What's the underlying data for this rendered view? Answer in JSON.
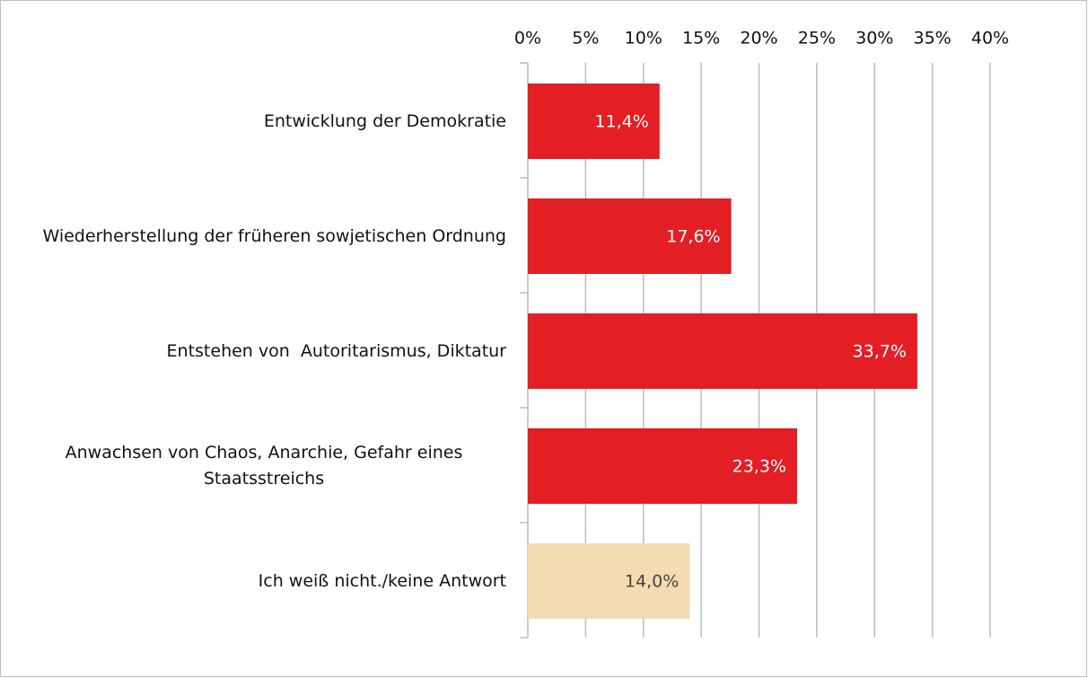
{
  "chart_data": {
    "type": "barh",
    "categories": [
      "Entwicklung der Demokratie",
      "Wiederherstellung der früheren sowjetischen Ordnung",
      "Entstehen von  Autoritarismus, Diktatur",
      "Anwachsen von Chaos, Anarchie, Gefahr eines Staatsstreichs",
      "Ich weiß nicht./keine Antwort"
    ],
    "values": [
      11.4,
      17.6,
      33.7,
      23.3,
      14.0
    ],
    "value_labels": [
      "11,4%",
      "17,6%",
      "33,7%",
      "23,3%",
      "14,0%"
    ],
    "colors": [
      "#e31e24",
      "#e31e24",
      "#e31e24",
      "#e31e24",
      "#f5dbb0"
    ],
    "xlim": [
      0,
      40
    ],
    "xticks": [
      {
        "value": 0,
        "label": "0%"
      },
      {
        "value": 5,
        "label": "5%"
      },
      {
        "value": 10,
        "label": "10%"
      },
      {
        "value": 15,
        "label": "15%"
      },
      {
        "value": 20,
        "label": "20%"
      },
      {
        "value": 25,
        "label": "25%"
      },
      {
        "value": 30,
        "label": "30%"
      },
      {
        "value": 35,
        "label": "35%"
      },
      {
        "value": 40,
        "label": "40%"
      }
    ],
    "grid": true
  }
}
